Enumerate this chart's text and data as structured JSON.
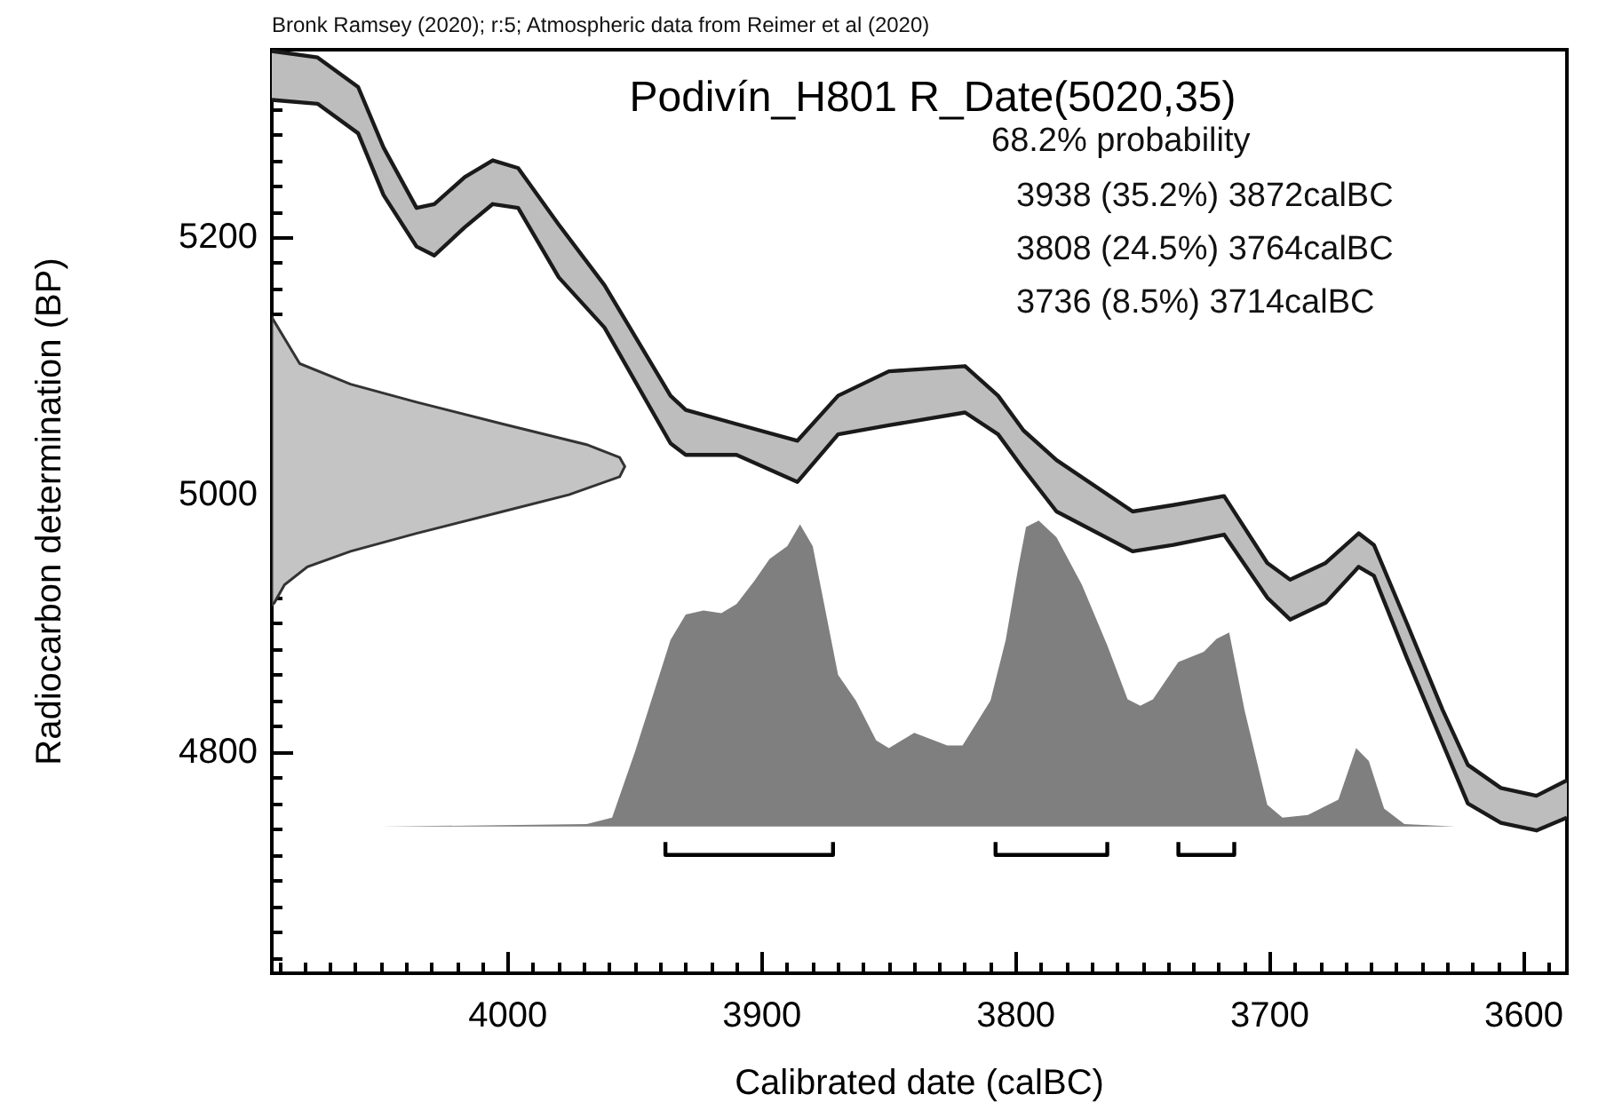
{
  "chart_data": {
    "type": "line",
    "title": "Podivín_H801 R_Date(5020,35)",
    "xlabel": "Calibrated date (calBC)",
    "ylabel": "Radiocarbon determination (BP)",
    "annotations": [
      "Bronk Ramsey (2020); r:5; Atmospheric data from Reimer et al (2020)",
      "68.2% probability",
      "3938 (35.2%) 3872calBC",
      "3808 (24.5%) 3764calBC",
      "3736 (8.5%) 3714calBC"
    ],
    "xlim": [
      4093,
      3583
    ],
    "ylim": [
      4628,
      5346
    ],
    "xticks": [
      {
        "value": 4090,
        "label": null
      },
      {
        "value": 4080,
        "label": null
      },
      {
        "value": 4070,
        "label": null
      },
      {
        "value": 4060,
        "label": null
      },
      {
        "value": 4050,
        "label": null
      },
      {
        "value": 4040,
        "label": null
      },
      {
        "value": 4030,
        "label": null
      },
      {
        "value": 4020,
        "label": null
      },
      {
        "value": 4010,
        "label": null
      },
      4000,
      {
        "value": 3990,
        "label": null
      },
      {
        "value": 3980,
        "label": null
      },
      {
        "value": 3970,
        "label": null
      },
      {
        "value": 3960,
        "label": null
      },
      {
        "value": 3950,
        "label": null
      },
      {
        "value": 3940,
        "label": null
      },
      {
        "value": 3930,
        "label": null
      },
      {
        "value": 3920,
        "label": null
      },
      {
        "value": 3910,
        "label": null
      },
      3900,
      {
        "value": 3890,
        "label": null
      },
      {
        "value": 3880,
        "label": null
      },
      {
        "value": 3870,
        "label": null
      },
      {
        "value": 3860,
        "label": null
      },
      {
        "value": 3850,
        "label": null
      },
      {
        "value": 3840,
        "label": null
      },
      {
        "value": 3830,
        "label": null
      },
      {
        "value": 3820,
        "label": null
      },
      {
        "value": 3810,
        "label": null
      },
      3800,
      {
        "value": 3790,
        "label": null
      },
      {
        "value": 3780,
        "label": null
      },
      {
        "value": 3770,
        "label": null
      },
      {
        "value": 3760,
        "label": null
      },
      {
        "value": 3750,
        "label": null
      },
      {
        "value": 3740,
        "label": null
      },
      {
        "value": 3730,
        "label": null
      },
      {
        "value": 3720,
        "label": null
      },
      {
        "value": 3710,
        "label": null
      },
      3700,
      {
        "value": 3690,
        "label": null
      },
      {
        "value": 3680,
        "label": null
      },
      {
        "value": 3670,
        "label": null
      },
      {
        "value": 3660,
        "label": null
      },
      {
        "value": 3650,
        "label": null
      },
      {
        "value": 3640,
        "label": null
      },
      {
        "value": 3630,
        "label": null
      },
      {
        "value": 3620,
        "label": null
      },
      {
        "value": 3610,
        "label": null
      },
      3600,
      {
        "value": 3590,
        "label": null
      }
    ],
    "yticks": [
      {
        "value": 4640,
        "label": null
      },
      {
        "value": 4660,
        "label": null
      },
      {
        "value": 4680,
        "label": null
      },
      {
        "value": 4700,
        "label": null
      },
      {
        "value": 4720,
        "label": null
      },
      {
        "value": 4740,
        "label": null
      },
      {
        "value": 4760,
        "label": null
      },
      {
        "value": 4780,
        "label": null
      },
      4800,
      {
        "value": 4820,
        "label": null
      },
      {
        "value": 4840,
        "label": null
      },
      {
        "value": 4860,
        "label": null
      },
      {
        "value": 4880,
        "label": null
      },
      {
        "value": 4900,
        "label": null
      },
      {
        "value": 4920,
        "label": null
      },
      {
        "value": 4940,
        "label": null
      },
      {
        "value": 4960,
        "label": null
      },
      {
        "value": 4980,
        "label": null
      },
      5000,
      {
        "value": 5020,
        "label": null
      },
      {
        "value": 5040,
        "label": null
      },
      {
        "value": 5060,
        "label": null
      },
      {
        "value": 5080,
        "label": null
      },
      {
        "value": 5100,
        "label": null
      },
      {
        "value": 5120,
        "label": null
      },
      {
        "value": 5140,
        "label": null
      },
      {
        "value": 5160,
        "label": null
      },
      {
        "value": 5180,
        "label": null
      },
      5200,
      {
        "value": 5220,
        "label": null
      },
      {
        "value": 5240,
        "label": null
      },
      {
        "value": 5260,
        "label": null
      },
      {
        "value": 5280,
        "label": null
      },
      {
        "value": 5300,
        "label": null
      },
      {
        "value": 5320,
        "label": null
      },
      {
        "value": 5340,
        "label": null
      }
    ],
    "grid": false,
    "series": [
      {
        "color": "#1a1a1a",
        "x": [
          4093,
          4075,
          4059,
          4049,
          4036,
          4029,
          4017,
          4006,
          3996,
          3980,
          3962,
          3936,
          3930,
          3910,
          3886,
          3870,
          3850,
          3820,
          3807,
          3797,
          3784,
          3754,
          3738,
          3718,
          3701,
          3692,
          3678,
          3665,
          3659,
          3646,
          3632,
          3622,
          3609,
          3595,
          3583
        ],
        "values": [
          5345,
          5340,
          5317,
          5270,
          5223,
          5226,
          5247,
          5260,
          5254,
          5210,
          5163,
          5077,
          5066,
          5055,
          5042,
          5077,
          5096,
          5100,
          5077,
          5050,
          5027,
          4987,
          4992,
          4999,
          4947,
          4934,
          4947,
          4970,
          4961,
          4900,
          4833,
          4790,
          4772,
          4766,
          4778
        ],
        "upper": [
          5345,
          5340,
          5317,
          5270,
          5223,
          5226,
          5247,
          5260,
          5254,
          5210,
          5163,
          5077,
          5066,
          5055,
          5042,
          5077,
          5096,
          5100,
          5077,
          5050,
          5027,
          4987,
          4992,
          4999,
          4947,
          4934,
          4947,
          4970,
          4961,
          4900,
          4833,
          4790,
          4772,
          4766,
          4778
        ],
        "lower": [
          5307,
          5304,
          5281,
          5233,
          5193,
          5186,
          5208,
          5226,
          5223,
          5169,
          5130,
          5040,
          5031,
          5031,
          5010,
          5047,
          5054,
          5064,
          5047,
          5020,
          4987,
          4956,
          4961,
          4969,
          4920,
          4903,
          4916,
          4944,
          4937,
          4873,
          4807,
          4760,
          4745,
          4739,
          4749
        ]
      },
      {
        "type": "line",
        "color": "#1a1a1a",
        "x": [
          4093,
          4075,
          4059,
          4049,
          4036,
          4029,
          4017,
          4006,
          3996,
          3980,
          3962,
          3936,
          3930,
          3910,
          3886,
          3870,
          3850,
          3820,
          3807,
          3797,
          3784,
          3754,
          3738,
          3718,
          3701,
          3692,
          3678,
          3665,
          3659,
          3646,
          3632,
          3622,
          3609,
          3595,
          3583
        ],
        "values": [
          5307,
          5304,
          5281,
          5233,
          5193,
          5186,
          5208,
          5226,
          5223,
          5169,
          5130,
          5040,
          5031,
          5031,
          5010,
          5047,
          5054,
          5064,
          5047,
          5020,
          4987,
          4956,
          4961,
          4969,
          4920,
          4903,
          4916,
          4944,
          4937,
          4873,
          4807,
          4760,
          4745,
          4739,
          4749
        ]
      },
      {
        "type": "area",
        "color": "#c4c4c4",
        "x": [
          4093,
          4082,
          4062,
          4036,
          4002,
          3969,
          3956,
          3954,
          3956,
          3976,
          4002,
          4036,
          4062,
          4079,
          4088,
          4092,
          4093
        ],
        "values": [
          5138,
          5102,
          5086,
          5072,
          5055,
          5039,
          5029,
          5022,
          5014,
          5000,
          4987,
          4970,
          4956,
          4944,
          4930,
          4916,
          4914
        ]
      },
      {
        "type": "area",
        "color": "#7f7f7f",
        "x": [
          4050,
          3969,
          3959,
          3950,
          3936,
          3930,
          3923,
          3916,
          3910,
          3903,
          3897,
          3890,
          3885,
          3880,
          3875,
          3870,
          3863,
          3855,
          3850,
          3840,
          3827,
          3821,
          3810,
          3804,
          3799,
          3796,
          3791,
          3784,
          3774,
          3764,
          3756,
          3751,
          3746,
          3736,
          3726,
          3721,
          3716,
          3710,
          3701,
          3695,
          3685,
          3673,
          3666,
          3661,
          3655,
          3647,
          3627
        ],
        "values": [
          4742,
          4744,
          4749,
          4800,
          4887,
          4907,
          4910,
          4908,
          4915,
          4933,
          4950,
          4960,
          4977,
          4960,
          4910,
          4860,
          4840,
          4809,
          4803,
          4815,
          4805,
          4805,
          4840,
          4887,
          4944,
          4975,
          4980,
          4967,
          4930,
          4883,
          4841,
          4836,
          4841,
          4870,
          4878,
          4888,
          4893,
          4833,
          4759,
          4749,
          4751,
          4763,
          4803,
          4793,
          4756,
          4744,
          4742
        ]
      },
      {
        "type": "line",
        "color": "#000000",
        "x": [
          3938,
          3938,
          3872,
          3872
        ],
        "values": [
          4730,
          4720,
          4720,
          4730
        ]
      },
      {
        "type": "line",
        "color": "#000000",
        "x": [
          3808,
          3808,
          3764,
          3764
        ],
        "values": [
          4730,
          4720,
          4720,
          4730
        ]
      },
      {
        "type": "line",
        "color": "#000000",
        "x": [
          3736,
          3736,
          3714,
          3714
        ],
        "values": [
          4730,
          4720,
          4720,
          4730
        ]
      }
    ]
  }
}
